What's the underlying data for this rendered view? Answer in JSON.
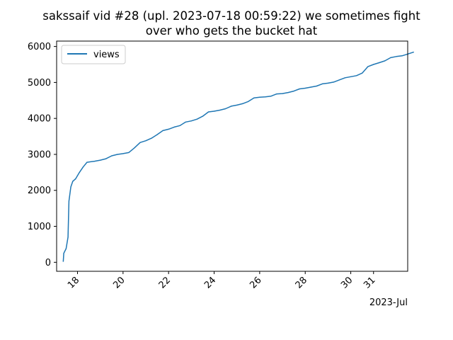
{
  "chart_data": {
    "type": "line",
    "title_lines": [
      "sakssaif vid #28 (upl. 2023-07-18 00:59:22) we sometimes fight",
      "over who gets the bucket hat"
    ],
    "xlabel": "",
    "ylabel": "",
    "x_offset_label": "2023-Jul",
    "xlim": [
      "2023-07-17 02:00",
      "2023-08-01 12:00"
    ],
    "ylim": [
      -250,
      6150
    ],
    "x_ticks": [
      {
        "date": "2023-07-18",
        "label": "18"
      },
      {
        "date": "2023-07-20",
        "label": "20"
      },
      {
        "date": "2023-07-22",
        "label": "22"
      },
      {
        "date": "2023-07-24",
        "label": "24"
      },
      {
        "date": "2023-07-26",
        "label": "26"
      },
      {
        "date": "2023-07-28",
        "label": "28"
      },
      {
        "date": "2023-07-30",
        "label": "30"
      },
      {
        "date": "2023-07-31",
        "label": "31"
      }
    ],
    "y_ticks": [
      0,
      1000,
      2000,
      3000,
      4000,
      5000,
      6000
    ],
    "grid": false,
    "legend": "upper-left",
    "series": [
      {
        "name": "views",
        "color": "#1f77b4",
        "points": [
          [
            "2023-07-17 09:00",
            30
          ],
          [
            "2023-07-17 09:30",
            250
          ],
          [
            "2023-07-17 12:00",
            380
          ],
          [
            "2023-07-17 14:00",
            700
          ],
          [
            "2023-07-17 15:00",
            1700
          ],
          [
            "2023-07-17 17:00",
            2100
          ],
          [
            "2023-07-17 19:00",
            2250
          ],
          [
            "2023-07-17 22:00",
            2320
          ],
          [
            "2023-07-18 02:00",
            2500
          ],
          [
            "2023-07-18 06:00",
            2650
          ],
          [
            "2023-07-18 10:00",
            2780
          ],
          [
            "2023-07-18 18:00",
            2810
          ],
          [
            "2023-07-19 00:00",
            2840
          ],
          [
            "2023-07-19 06:00",
            2880
          ],
          [
            "2023-07-19 12:00",
            2960
          ],
          [
            "2023-07-19 18:00",
            3000
          ],
          [
            "2023-07-20 00:00",
            3020
          ],
          [
            "2023-07-20 06:00",
            3050
          ],
          [
            "2023-07-20 12:00",
            3180
          ],
          [
            "2023-07-20 18:00",
            3330
          ],
          [
            "2023-07-21 00:00",
            3380
          ],
          [
            "2023-07-21 06:00",
            3450
          ],
          [
            "2023-07-21 12:00",
            3550
          ],
          [
            "2023-07-21 18:00",
            3660
          ],
          [
            "2023-07-22 00:00",
            3700
          ],
          [
            "2023-07-22 06:00",
            3760
          ],
          [
            "2023-07-22 12:00",
            3800
          ],
          [
            "2023-07-22 18:00",
            3900
          ],
          [
            "2023-07-23 00:00",
            3930
          ],
          [
            "2023-07-23 06:00",
            3980
          ],
          [
            "2023-07-23 12:00",
            4060
          ],
          [
            "2023-07-23 18:00",
            4180
          ],
          [
            "2023-07-24 00:00",
            4200
          ],
          [
            "2023-07-24 06:00",
            4230
          ],
          [
            "2023-07-24 12:00",
            4270
          ],
          [
            "2023-07-24 18:00",
            4340
          ],
          [
            "2023-07-25 00:00",
            4370
          ],
          [
            "2023-07-25 06:00",
            4410
          ],
          [
            "2023-07-25 12:00",
            4470
          ],
          [
            "2023-07-25 18:00",
            4570
          ],
          [
            "2023-07-26 00:00",
            4590
          ],
          [
            "2023-07-26 06:00",
            4600
          ],
          [
            "2023-07-26 12:00",
            4620
          ],
          [
            "2023-07-26 18:00",
            4680
          ],
          [
            "2023-07-27 00:00",
            4690
          ],
          [
            "2023-07-27 06:00",
            4720
          ],
          [
            "2023-07-27 12:00",
            4760
          ],
          [
            "2023-07-27 18:00",
            4820
          ],
          [
            "2023-07-28 00:00",
            4840
          ],
          [
            "2023-07-28 06:00",
            4870
          ],
          [
            "2023-07-28 12:00",
            4900
          ],
          [
            "2023-07-28 18:00",
            4960
          ],
          [
            "2023-07-29 00:00",
            4980
          ],
          [
            "2023-07-29 06:00",
            5010
          ],
          [
            "2023-07-29 12:00",
            5070
          ],
          [
            "2023-07-29 18:00",
            5130
          ],
          [
            "2023-07-30 00:00",
            5160
          ],
          [
            "2023-07-30 06:00",
            5190
          ],
          [
            "2023-07-30 12:00",
            5260
          ],
          [
            "2023-07-30 18:00",
            5440
          ],
          [
            "2023-07-31 00:00",
            5500
          ],
          [
            "2023-07-31 06:00",
            5550
          ],
          [
            "2023-07-31 12:00",
            5600
          ],
          [
            "2023-07-31 18:00",
            5690
          ],
          [
            "2023-08-01 00:00",
            5720
          ],
          [
            "2023-08-01 06:00",
            5740
          ],
          [
            "2023-08-01 12:00",
            5790
          ],
          [
            "2023-08-01 18:00",
            5840
          ]
        ]
      }
    ]
  }
}
